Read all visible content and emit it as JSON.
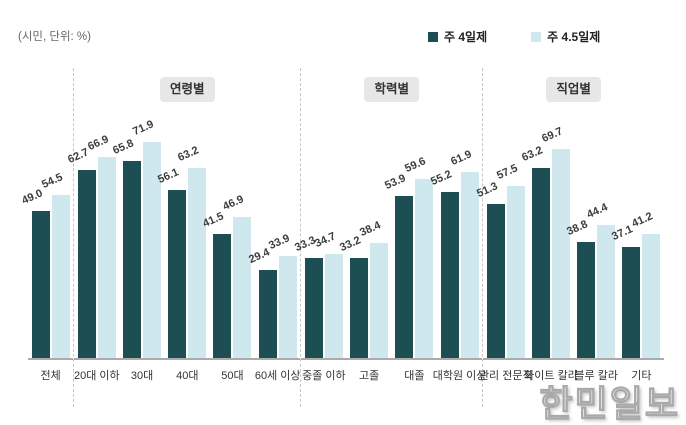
{
  "unit_note": "(시민, 단위: %)",
  "watermark": {
    "text": "한민일보"
  },
  "chart_data": {
    "type": "bar",
    "title": "",
    "unit_label": "(시민, 단위: %)",
    "legend_position": "top",
    "grid": false,
    "ylim": [
      0,
      80
    ],
    "categories": [
      "전체",
      "20대 이하",
      "30대",
      "40대",
      "50대",
      "60세 이상",
      "중졸 이하",
      "고졸",
      "대졸",
      "대학원 이상",
      "관리 전문직",
      "화이트 칼라",
      "블루 칼라",
      "기타"
    ],
    "series": [
      {
        "name": "주 4일제",
        "color": "#1d4e54",
        "values": [
          49.0,
          62.7,
          65.8,
          56.1,
          41.5,
          29.4,
          33.3,
          33.2,
          53.9,
          55.2,
          51.3,
          63.2,
          38.8,
          37.1
        ]
      },
      {
        "name": "주 4.5일제",
        "color": "#cfe8ee",
        "values": [
          54.5,
          66.9,
          71.9,
          63.2,
          46.9,
          33.9,
          34.7,
          38.4,
          59.6,
          61.9,
          57.5,
          69.7,
          44.4,
          41.2
        ]
      }
    ],
    "groups": [
      {
        "label": "",
        "span": [
          0,
          0
        ]
      },
      {
        "label": "연령별",
        "span": [
          1,
          5
        ]
      },
      {
        "label": "학력별",
        "span": [
          6,
          9
        ]
      },
      {
        "label": "직업별",
        "span": [
          10,
          13
        ]
      }
    ]
  }
}
